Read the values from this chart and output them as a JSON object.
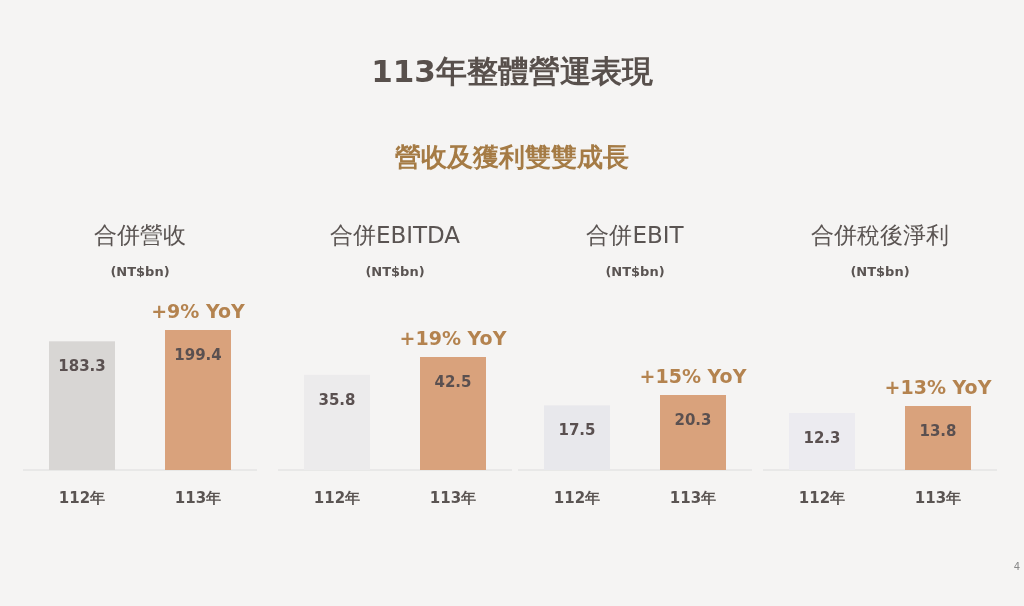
{
  "chart_data": [
    {
      "type": "other",
      "title": "113年整體營運表現",
      "subtitle": "營收及獲利雙雙成長",
      "annotations": [
        "4"
      ]
    },
    {
      "type": "bar",
      "title": "合併營收",
      "subtitle": "(NT$bn)",
      "categories": [
        "112年",
        "113年"
      ],
      "values": [
        183.3,
        199.4
      ],
      "colors": [
        "#d8d6d4",
        "#d9a27c"
      ],
      "data_labels": true,
      "annotations": [
        {
          "text": "+9% YoY",
          "x": "113年",
          "y": 199.4
        }
      ]
    },
    {
      "type": "bar",
      "title": "合併EBITDA",
      "subtitle": "(NT$bn)",
      "categories": [
        "112年",
        "113年"
      ],
      "values": [
        35.8,
        42.5
      ],
      "colors": [
        "#ecebec",
        "#d9a27c"
      ],
      "data_labels": true,
      "annotations": [
        {
          "text": "+19% YoY",
          "x": "113年",
          "y": 42.5
        }
      ]
    },
    {
      "type": "bar",
      "title": "合併EBIT",
      "subtitle": "(NT$bn)",
      "categories": [
        "112年",
        "113年"
      ],
      "values": [
        17.5,
        20.3
      ],
      "colors": [
        "#e8e8ec",
        "#d9a27c"
      ],
      "data_labels": true,
      "annotations": [
        {
          "text": "+15% YoY",
          "x": "113年",
          "y": 20.3
        }
      ]
    },
    {
      "type": "bar",
      "title": "合併稅後淨利",
      "subtitle": "(NT$bn)",
      "categories": [
        "112年",
        "113年"
      ],
      "values": [
        12.3,
        13.8
      ],
      "colors": [
        "#ecebf0",
        "#d9a27c"
      ],
      "data_labels": true,
      "annotations": [
        {
          "text": "+13% YoY",
          "x": "113年",
          "y": 13.8
        }
      ]
    }
  ]
}
